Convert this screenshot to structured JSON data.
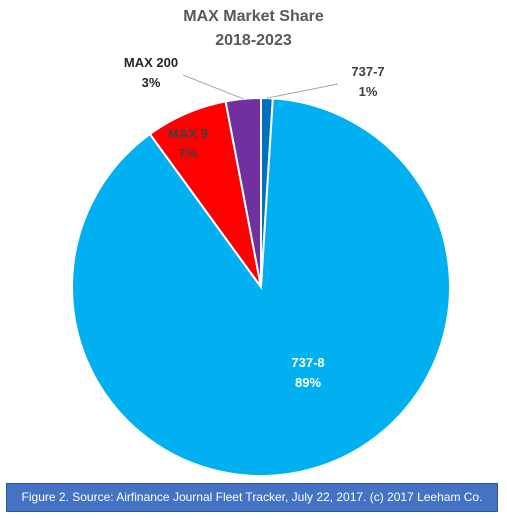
{
  "chart_data": {
    "type": "pie",
    "title": "MAX Market Share",
    "subtitle": "2018-2023",
    "slices": [
      {
        "label": "737-7",
        "value": 1,
        "display": "1%",
        "color": "#0070c0"
      },
      {
        "label": "737-8",
        "value": 89,
        "display": "89%",
        "color": "#00b0f0"
      },
      {
        "label": "MAX 9",
        "value": 7,
        "display": "7%",
        "color": "#ff0000"
      },
      {
        "label": "MAX 200",
        "value": 3,
        "display": "3%",
        "color": "#7030a0"
      }
    ],
    "legend": "none"
  },
  "caption": "Figure 2. Source: Airfinance Journal Fleet Tracker, July 22, 2017. (c) 2017 Leeham Co."
}
